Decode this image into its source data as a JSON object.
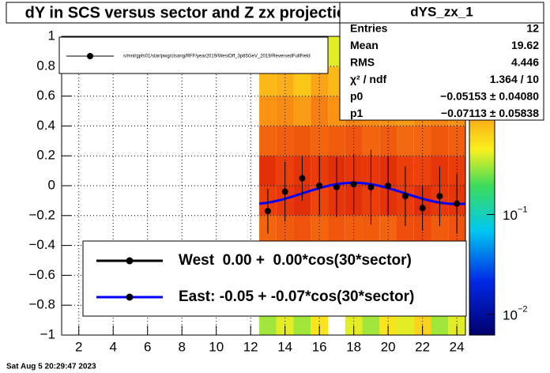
{
  "chart_data": {
    "type": "profile",
    "title": "dY in SCS versus sector and Z zx projection",
    "stats_title": "dYS_zx_1",
    "stats": [
      {
        "name": "Entries",
        "value": 12
      },
      {
        "name": "Mean",
        "value": 19.62
      },
      {
        "name": "RMS",
        "value": 4.446
      },
      {
        "name": "χ² / ndf",
        "value": 1.364,
        "label": "1.364 / 10"
      },
      {
        "name": "p0",
        "value": -0.05153,
        "label": "−0.05153 ± 0.04080"
      },
      {
        "name": "p1",
        "value": -0.07113,
        "label": "−0.07113 ± 0.05838"
      }
    ],
    "top_legend": "s/mnt/gpfs01/star/pwg/ctsang/RFF/year2019/WestOff_3p85GeV_2019/ReversedFullField",
    "legend": [
      {
        "label": "West  0.00 +  0.00*cos(30*sector)",
        "color": "#000000"
      },
      {
        "label": "East: -0.05 + -0.07*cos(30*sector)",
        "color": "#0000ff"
      }
    ],
    "timestamp": "Sat Aug  5 20:29:47 2023",
    "x": [
      13,
      14,
      15,
      16,
      17,
      18,
      19,
      20,
      21,
      22,
      23,
      24
    ],
    "values": [
      -0.17,
      -0.04,
      0.05,
      0.0,
      -0.01,
      0.01,
      -0.01,
      0.0,
      -0.07,
      -0.15,
      -0.07,
      -0.12
    ],
    "errors": [
      0.15,
      0.2,
      0.15,
      0.2,
      0.2,
      0.2,
      0.25,
      0.2,
      0.2,
      0.15,
      0.2,
      0.2
    ],
    "marker_color": "#000000",
    "fit_color": "#0000ff",
    "fit_range": [
      12.5,
      24.5
    ],
    "xlim": [
      1,
      24.5
    ],
    "xticks": [
      2,
      4,
      6,
      8,
      10,
      12,
      14,
      16,
      18,
      20,
      22,
      24
    ],
    "ylim": [
      -1,
      1
    ],
    "yticks": [
      {
        "value": -1,
        "label": "−1"
      },
      {
        "value": -0.8,
        "label": "−0.8"
      },
      {
        "value": -0.6,
        "label": "−0.6"
      },
      {
        "value": -0.4,
        "label": "−0.4"
      },
      {
        "value": -0.2,
        "label": "−0.2"
      },
      0,
      0.2,
      0.4,
      0.6,
      0.8,
      1
    ],
    "grid": true,
    "heat": {
      "xbins": [
        12.5,
        13.5,
        14.5,
        15.5,
        16.5,
        17.5,
        18.5,
        19.5,
        20.5,
        21.5,
        22.5,
        23.5,
        24.5
      ],
      "ybins": [
        -1,
        -0.8,
        -0.6,
        -0.4,
        -0.2,
        0,
        0.2,
        0.4,
        0.6,
        0.8,
        1
      ],
      "z": [
        [
          0.3,
          0.8,
          1.2,
          2,
          3,
          3.5,
          2,
          1.2,
          0.8,
          0.4
        ],
        [
          0.4,
          0.9,
          1.5,
          2.2,
          3.2,
          3,
          2.1,
          1.3,
          0.9,
          0.5
        ],
        [
          0.3,
          0.7,
          1.1,
          2.4,
          3.6,
          3.4,
          2.3,
          1.1,
          0.7,
          0
        ],
        [
          0.5,
          1,
          1.4,
          2,
          2.8,
          3.1,
          2,
          1.5,
          1,
          0.6
        ],
        [
          0,
          0.8,
          1.3,
          2.3,
          3.3,
          3.6,
          2.2,
          1.2,
          0.8,
          0.4
        ],
        [
          0.4,
          0.9,
          1.2,
          2.1,
          3.5,
          3.3,
          2.4,
          1.4,
          0.9,
          0.5
        ],
        [
          0.3,
          0.8,
          1.6,
          2.2,
          3,
          3.2,
          2,
          1.3,
          0.7,
          0.3
        ],
        [
          0.5,
          0.7,
          1.2,
          2,
          3.4,
          3.5,
          2.2,
          1.2,
          0.8,
          0.4
        ],
        [
          0.4,
          1,
          1.5,
          2.5,
          3.1,
          3,
          1.9,
          1.1,
          0.9,
          0
        ],
        [
          0.6,
          0.9,
          1.3,
          2.6,
          3.6,
          2.9,
          2,
          1.3,
          0.8,
          0.5
        ],
        [
          0.3,
          0.8,
          1.2,
          2.2,
          3.2,
          3.3,
          2.3,
          1.4,
          0.7,
          0.4
        ],
        [
          0.4,
          0.9,
          1.4,
          2.4,
          3.3,
          3.1,
          2.1,
          1.2,
          0.9,
          0.5
        ]
      ]
    },
    "zscale": "log",
    "zlim": [
      0.0062,
      6.1
    ],
    "zticks": [
      {
        "value": 0.01,
        "label": "10",
        "exponent": "−2"
      },
      {
        "value": 0.1,
        "label": "10",
        "exponent": "−1"
      }
    ]
  }
}
